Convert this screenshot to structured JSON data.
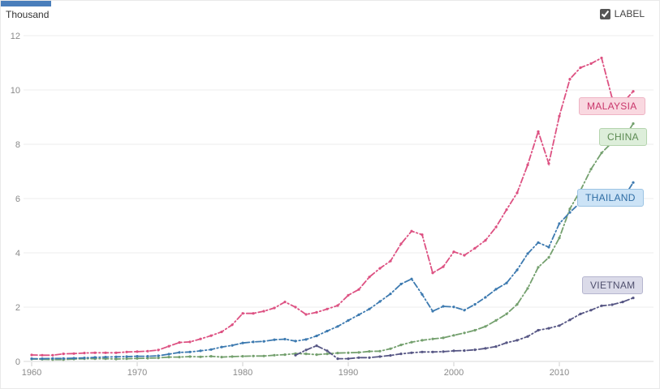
{
  "header": {
    "unit_label": "Thousand",
    "label_checkbox": {
      "label": "LABEL",
      "checked": true
    }
  },
  "chart_data": {
    "type": "line",
    "title": "",
    "ylabel": "Thousand",
    "xlabel": "",
    "ylim": [
      0,
      12
    ],
    "yticks": [
      0,
      2,
      4,
      6,
      8,
      10,
      12
    ],
    "xticks": [
      1960,
      1970,
      1980,
      1990,
      2000,
      2010
    ],
    "grid": "horizontal",
    "line_style": "dash-dot-with-point-markers",
    "legend_position": "inline-badges-right",
    "x": [
      1960,
      1961,
      1962,
      1963,
      1964,
      1965,
      1966,
      1967,
      1968,
      1969,
      1970,
      1971,
      1972,
      1973,
      1974,
      1975,
      1976,
      1977,
      1978,
      1979,
      1980,
      1981,
      1982,
      1983,
      1984,
      1985,
      1986,
      1987,
      1988,
      1989,
      1990,
      1991,
      1992,
      1993,
      1994,
      1995,
      1996,
      1997,
      1998,
      1999,
      2000,
      2001,
      2002,
      2003,
      2004,
      2005,
      2006,
      2007,
      2008,
      2009,
      2010,
      2011,
      2012,
      2013,
      2014,
      2015,
      2016,
      2017
    ],
    "series": [
      {
        "name": "MALAYSIA",
        "color": "#dd5182",
        "badge_bg": "#f9d8e0",
        "badge_border": "#eeb4c4",
        "label_color": "#c9366b",
        "values": [
          0.24,
          0.23,
          0.23,
          0.28,
          0.29,
          0.31,
          0.32,
          0.32,
          0.32,
          0.35,
          0.36,
          0.38,
          0.42,
          0.56,
          0.7,
          0.72,
          0.83,
          0.95,
          1.09,
          1.35,
          1.77,
          1.77,
          1.85,
          1.97,
          2.19,
          2.0,
          1.73,
          1.81,
          1.93,
          2.06,
          2.44,
          2.65,
          3.11,
          3.43,
          3.7,
          4.33,
          4.8,
          4.67,
          3.26,
          3.49,
          4.04,
          3.91,
          4.17,
          4.46,
          4.95,
          5.59,
          6.21,
          7.24,
          8.47,
          7.29,
          9.04,
          10.4,
          10.82,
          10.97,
          11.18,
          9.7,
          9.52,
          9.95
        ]
      },
      {
        "name": "CHINA",
        "color": "#74a06e",
        "badge_bg": "#ddeeda",
        "badge_border": "#b5d4ae",
        "label_color": "#5c8a52",
        "values": [
          0.09,
          0.08,
          0.07,
          0.07,
          0.09,
          0.1,
          0.1,
          0.1,
          0.09,
          0.1,
          0.11,
          0.12,
          0.13,
          0.16,
          0.16,
          0.18,
          0.17,
          0.19,
          0.16,
          0.18,
          0.19,
          0.2,
          0.2,
          0.23,
          0.25,
          0.29,
          0.28,
          0.25,
          0.28,
          0.31,
          0.32,
          0.33,
          0.37,
          0.38,
          0.47,
          0.61,
          0.71,
          0.78,
          0.83,
          0.87,
          0.96,
          1.05,
          1.15,
          1.29,
          1.51,
          1.75,
          2.1,
          2.69,
          3.47,
          3.83,
          4.55,
          5.62,
          6.3,
          7.08,
          7.68,
          8.07,
          8.15,
          8.76
        ]
      },
      {
        "name": "THAILAND",
        "color": "#3d7ab0",
        "badge_bg": "#cce3f6",
        "badge_border": "#9cc4e4",
        "label_color": "#2e6da4",
        "values": [
          0.1,
          0.1,
          0.11,
          0.11,
          0.12,
          0.13,
          0.15,
          0.16,
          0.17,
          0.18,
          0.19,
          0.19,
          0.21,
          0.27,
          0.33,
          0.35,
          0.39,
          0.44,
          0.53,
          0.59,
          0.68,
          0.72,
          0.74,
          0.8,
          0.82,
          0.75,
          0.81,
          0.94,
          1.12,
          1.29,
          1.51,
          1.72,
          1.93,
          2.21,
          2.49,
          2.85,
          3.04,
          2.47,
          1.85,
          2.03,
          2.01,
          1.89,
          2.1,
          2.36,
          2.66,
          2.89,
          3.37,
          3.97,
          4.38,
          4.21,
          5.08,
          5.49,
          5.86,
          6.17,
          5.95,
          5.84,
          5.98,
          6.59
        ]
      },
      {
        "name": "VIETNAM",
        "color": "#565684",
        "badge_bg": "#dbdbe9",
        "badge_border": "#b6b6cf",
        "label_color": "#50506e",
        "values": [
          null,
          null,
          null,
          null,
          null,
          null,
          null,
          null,
          null,
          null,
          null,
          null,
          null,
          null,
          null,
          null,
          null,
          null,
          null,
          null,
          null,
          null,
          null,
          null,
          null,
          0.23,
          0.42,
          0.58,
          0.39,
          0.1,
          0.1,
          0.14,
          0.14,
          0.18,
          0.22,
          0.28,
          0.32,
          0.35,
          0.35,
          0.36,
          0.39,
          0.4,
          0.43,
          0.48,
          0.55,
          0.69,
          0.78,
          0.92,
          1.15,
          1.22,
          1.32,
          1.53,
          1.75,
          1.89,
          2.05,
          2.09,
          2.19,
          2.34
        ]
      }
    ]
  }
}
